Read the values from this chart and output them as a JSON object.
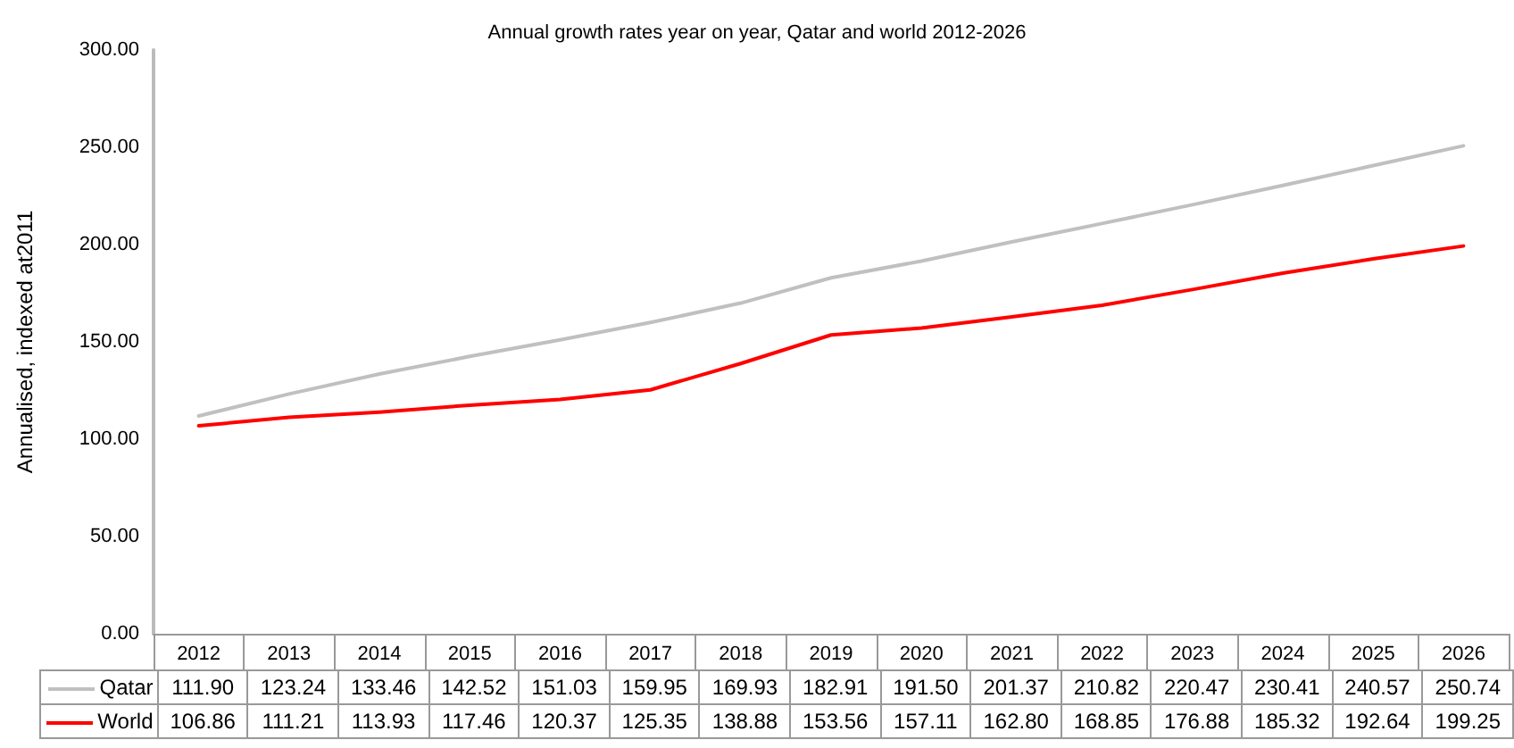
{
  "chart_data": {
    "type": "line",
    "title": "Annual growth rates year on year, Qatar and world 2012-2026",
    "ylabel": "Annualised, indexed at2011",
    "categories": [
      "2012",
      "2013",
      "2014",
      "2015",
      "2016",
      "2017",
      "2018",
      "2019",
      "2020",
      "2021",
      "2022",
      "2023",
      "2024",
      "2025",
      "2026"
    ],
    "series": [
      {
        "name": "Qatar",
        "color": "#c0c0c0",
        "values": [
          111.9,
          123.24,
          133.46,
          142.52,
          151.03,
          159.95,
          169.93,
          182.91,
          191.5,
          201.37,
          210.82,
          220.47,
          230.41,
          240.57,
          250.74
        ],
        "value_labels": [
          "111.90",
          "123.24",
          "133.46",
          "142.52",
          "151.03",
          "159.95",
          "169.93",
          "182.91",
          "191.50",
          "201.37",
          "210.82",
          "220.47",
          "230.41",
          "240.57",
          "250.74"
        ]
      },
      {
        "name": "World",
        "color": "#ff0000",
        "values": [
          106.86,
          111.21,
          113.93,
          117.46,
          120.37,
          125.35,
          138.88,
          153.56,
          157.11,
          162.8,
          168.85,
          176.88,
          185.32,
          192.64,
          199.25
        ],
        "value_labels": [
          "106.86",
          "111.21",
          "113.93",
          "117.46",
          "120.37",
          "125.35",
          "138.88",
          "153.56",
          "157.11",
          "162.80",
          "168.85",
          "176.88",
          "185.32",
          "192.64",
          "199.25"
        ]
      }
    ],
    "ylim": [
      0,
      300
    ],
    "yticks": [
      {
        "value": 0,
        "label": "0.00"
      },
      {
        "value": 50,
        "label": "50.00"
      },
      {
        "value": 100,
        "label": "100.00"
      },
      {
        "value": 150,
        "label": "150.00"
      },
      {
        "value": 200,
        "label": "200.00"
      },
      {
        "value": 250,
        "label": "250.00"
      },
      {
        "value": 300,
        "label": "300.00"
      }
    ],
    "grid": false,
    "legend": "bottom left",
    "marker": "none",
    "line_style": "solid"
  }
}
